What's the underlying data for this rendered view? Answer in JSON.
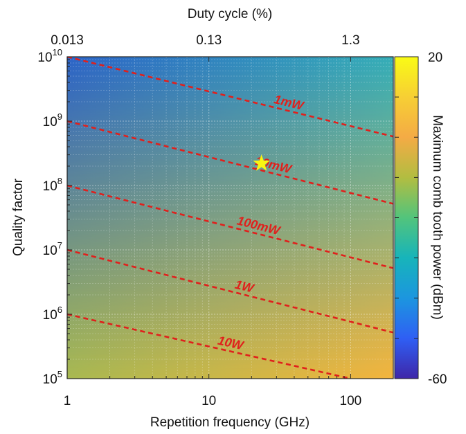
{
  "chart_data": {
    "type": "heatmap",
    "xlabel": "Repetition frequency (GHz)",
    "x_scale": "log",
    "xlim": [
      1,
      200
    ],
    "x_ticks": [
      {
        "value": 1,
        "label": "1"
      },
      {
        "value": 10,
        "label": "10"
      },
      {
        "value": 100,
        "label": "100"
      }
    ],
    "top_axis": {
      "label": "Duty cycle (%)",
      "scale": "log",
      "ticks": [
        {
          "value": 0.013,
          "label": "0.013"
        },
        {
          "value": 0.13,
          "label": "0.13"
        },
        {
          "value": 1.3,
          "label": "1.3"
        }
      ]
    },
    "ylabel": "Quality factor",
    "y_scale": "log",
    "ylim": [
      100000,
      10000000000
    ],
    "y_ticks": [
      {
        "value": 100000,
        "base": "10",
        "exp": "5"
      },
      {
        "value": 1000000,
        "base": "10",
        "exp": "6"
      },
      {
        "value": 10000000,
        "base": "10",
        "exp": "7"
      },
      {
        "value": 100000000,
        "base": "10",
        "exp": "8"
      },
      {
        "value": 1000000000,
        "base": "10",
        "exp": "9"
      },
      {
        "value": 10000000000,
        "base": "10",
        "exp": "10"
      }
    ],
    "grid": true,
    "colorbar": {
      "label": "Maximum comb tooth power (dBm)",
      "min": -60,
      "max": 20,
      "min_label": "-60",
      "max_label": "20",
      "colormap": [
        "#3e26a8",
        "#2f5ff4",
        "#1c96df",
        "#17b4ba",
        "#52c47c",
        "#b2bd41",
        "#f4ab45",
        "#f7cf34",
        "#f9fb15"
      ]
    },
    "field_colors": {
      "top_left": "#2c64c8",
      "top_right": "#34aeb8",
      "bottom_left": "#a9b950",
      "bottom_right": "#f4b43c"
    },
    "contours": [
      {
        "label": "1mW",
        "start": [
          1,
          10000000000
        ],
        "end": [
          200,
          577000000
        ],
        "label_at_x": 36
      },
      {
        "label": "10mW",
        "start": [
          1,
          1000000000
        ],
        "end": [
          200,
          52000000
        ],
        "label_at_x": 28
      },
      {
        "label": "100mW",
        "start": [
          1,
          100000000
        ],
        "end": [
          200,
          5200000
        ],
        "label_at_x": 22
      },
      {
        "label": "1W",
        "start": [
          1,
          10000000
        ],
        "end": [
          200,
          520000
        ],
        "label_at_x": 17.5
      },
      {
        "label": "10W",
        "start": [
          1,
          1000000
        ],
        "end": [
          100,
          100000
        ],
        "label_at_x": 14
      }
    ],
    "contour_color": "#e0201c",
    "marker": {
      "type": "star",
      "x": 23.5,
      "y": 220000000,
      "color": "#f9f512"
    }
  }
}
